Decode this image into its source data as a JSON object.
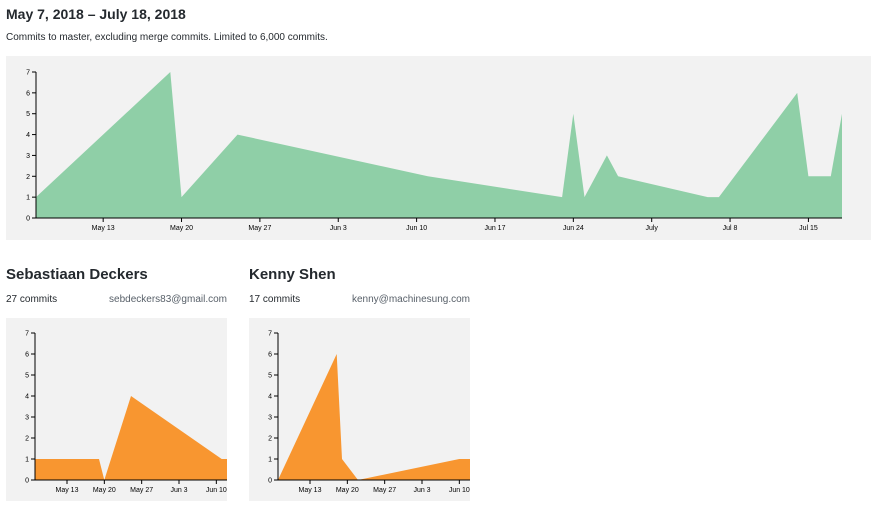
{
  "header": {
    "range": "May 7, 2018 – July 18, 2018",
    "description": "Commits to master, excluding merge commits. Limited to 6,000 commits."
  },
  "colors": {
    "overall_area": "#8fcfa7",
    "contributor_area": "#f89630",
    "panel_bg": "#f2f2f2"
  },
  "contributors": [
    {
      "name": "Sebastiaan Deckers",
      "commits": "27 commits",
      "email": "sebdeckers83@gmail.com"
    },
    {
      "name": "Kenny Shen",
      "commits": "17 commits",
      "email": "kenny@machinesung.com"
    }
  ],
  "chart_data": [
    {
      "type": "area",
      "title": "",
      "xlabel": "",
      "ylabel": "",
      "xlim": [
        "2018-05-07",
        "2018-07-18"
      ],
      "ylim": [
        0,
        7
      ],
      "yticks": [
        0,
        1,
        2,
        3,
        4,
        5,
        6,
        7
      ],
      "xtick_dates": [
        "2018-05-13",
        "2018-05-20",
        "2018-05-27",
        "2018-06-03",
        "2018-06-10",
        "2018-06-17",
        "2018-06-24",
        "2018-07-01",
        "2018-07-08",
        "2018-07-15"
      ],
      "xtick_labels": [
        "May 13",
        "May 20",
        "May 27",
        "Jun 3",
        "Jun 10",
        "Jun 17",
        "Jun 24",
        "July",
        "Jul 8",
        "Jul 15"
      ],
      "series": [
        {
          "x": [
            "2018-05-07",
            "2018-05-19",
            "2018-05-20",
            "2018-05-25",
            "2018-06-11",
            "2018-06-23",
            "2018-06-24",
            "2018-06-25",
            "2018-06-27",
            "2018-06-28",
            "2018-07-06",
            "2018-07-07",
            "2018-07-14",
            "2018-07-15",
            "2018-07-16",
            "2018-07-17",
            "2018-07-18"
          ],
          "y": [
            1,
            7,
            1,
            4,
            2,
            1,
            5,
            1,
            3,
            2,
            1,
            1,
            6,
            2,
            2,
            2,
            5
          ]
        }
      ]
    },
    {
      "type": "area",
      "title": "",
      "xlabel": "",
      "ylabel": "",
      "xlim": [
        "2018-05-07",
        "2018-06-12"
      ],
      "ylim": [
        0,
        7
      ],
      "yticks": [
        0,
        1,
        2,
        3,
        4,
        5,
        6,
        7
      ],
      "xtick_dates": [
        "2018-05-13",
        "2018-05-20",
        "2018-05-27",
        "2018-06-03",
        "2018-06-10"
      ],
      "xtick_labels": [
        "May 13",
        "May 20",
        "May 27",
        "Jun 3",
        "Jun 10"
      ],
      "series": [
        {
          "x": [
            "2018-05-07",
            "2018-05-18",
            "2018-05-19",
            "2018-05-20",
            "2018-05-25",
            "2018-06-11",
            "2018-06-12"
          ],
          "y": [
            1,
            1,
            1,
            0,
            4,
            1,
            1
          ]
        }
      ]
    },
    {
      "type": "area",
      "title": "",
      "xlabel": "",
      "ylabel": "",
      "xlim": [
        "2018-05-07",
        "2018-06-12"
      ],
      "ylim": [
        0,
        7
      ],
      "yticks": [
        0,
        1,
        2,
        3,
        4,
        5,
        6,
        7
      ],
      "xtick_dates": [
        "2018-05-13",
        "2018-05-20",
        "2018-05-27",
        "2018-06-03",
        "2018-06-10"
      ],
      "xtick_labels": [
        "May 13",
        "May 20",
        "May 27",
        "Jun 3",
        "Jun 10"
      ],
      "series": [
        {
          "x": [
            "2018-05-07",
            "2018-05-18",
            "2018-05-19",
            "2018-05-22",
            "2018-06-10",
            "2018-06-11",
            "2018-06-12"
          ],
          "y": [
            0,
            6,
            1,
            0,
            1,
            1,
            1
          ]
        }
      ]
    }
  ]
}
